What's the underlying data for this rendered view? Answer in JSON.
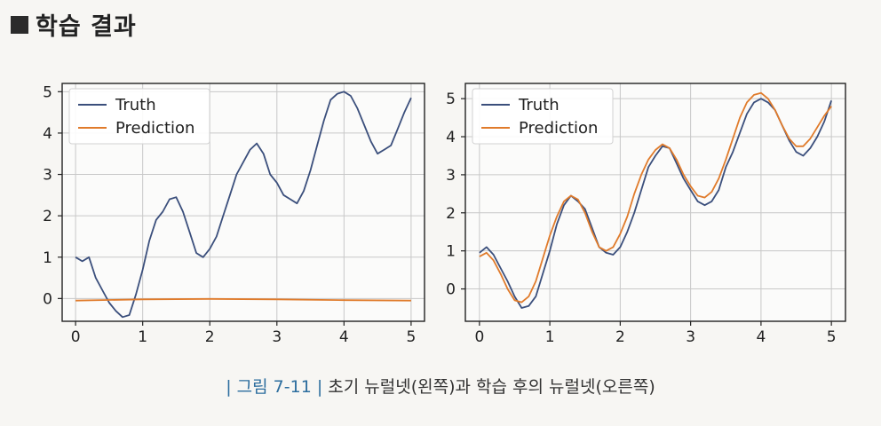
{
  "heading": {
    "title": "학습 결과"
  },
  "caption": {
    "fig_label": "| 그림 7-11 |",
    "text": "초기 뉴럴넷(왼쪽)과 학습 후의 뉴럴넷(오른쪽)"
  },
  "colors": {
    "truth": "#3b4f7c",
    "prediction": "#e07b2b",
    "grid": "#c8c8c8"
  },
  "chart_data": [
    {
      "type": "line",
      "title": "",
      "xlabel": "",
      "ylabel": "",
      "xlim": [
        -0.2,
        5.2
      ],
      "ylim": [
        -0.55,
        5.2
      ],
      "xticks": [
        0,
        1,
        2,
        3,
        4,
        5
      ],
      "yticks": [
        0,
        1,
        2,
        3,
        4,
        5
      ],
      "grid": true,
      "legend": "top-left",
      "series": [
        {
          "name": "Truth",
          "x": [
            0,
            0.1,
            0.2,
            0.3,
            0.4,
            0.5,
            0.6,
            0.7,
            0.8,
            0.9,
            1.0,
            1.1,
            1.2,
            1.3,
            1.4,
            1.5,
            1.6,
            1.7,
            1.8,
            1.9,
            2.0,
            2.1,
            2.2,
            2.3,
            2.4,
            2.5,
            2.6,
            2.7,
            2.8,
            2.9,
            3.0,
            3.1,
            3.2,
            3.3,
            3.4,
            3.5,
            3.6,
            3.7,
            3.8,
            3.9,
            4.0,
            4.1,
            4.2,
            4.3,
            4.4,
            4.5,
            4.6,
            4.7,
            4.8,
            4.9,
            5.0
          ],
          "y": [
            1.0,
            0.9,
            1.0,
            0.5,
            0.2,
            -0.1,
            -0.3,
            -0.45,
            -0.4,
            0.1,
            0.7,
            1.4,
            1.9,
            2.1,
            2.4,
            2.45,
            2.1,
            1.6,
            1.1,
            1.0,
            1.2,
            1.5,
            2.0,
            2.5,
            3.0,
            3.3,
            3.6,
            3.75,
            3.5,
            3.0,
            2.8,
            2.5,
            2.4,
            2.3,
            2.6,
            3.1,
            3.7,
            4.3,
            4.8,
            4.95,
            5.0,
            4.9,
            4.6,
            4.2,
            3.8,
            3.5,
            3.6,
            3.7,
            4.1,
            4.5,
            4.85
          ]
        },
        {
          "name": "Prediction",
          "x": [
            0,
            1,
            2,
            3,
            4,
            5
          ],
          "y": [
            -0.05,
            -0.02,
            -0.01,
            -0.02,
            -0.04,
            -0.05
          ]
        }
      ]
    },
    {
      "type": "line",
      "title": "",
      "xlabel": "",
      "ylabel": "",
      "xlim": [
        -0.2,
        5.2
      ],
      "ylim": [
        -0.85,
        5.4
      ],
      "xticks": [
        0,
        1,
        2,
        3,
        4,
        5
      ],
      "yticks": [
        0,
        1,
        2,
        3,
        4,
        5
      ],
      "grid": true,
      "legend": "top-left",
      "series": [
        {
          "name": "Truth",
          "x": [
            0,
            0.1,
            0.2,
            0.3,
            0.4,
            0.5,
            0.6,
            0.7,
            0.8,
            0.9,
            1.0,
            1.1,
            1.2,
            1.3,
            1.4,
            1.5,
            1.6,
            1.7,
            1.8,
            1.9,
            2.0,
            2.1,
            2.2,
            2.3,
            2.4,
            2.5,
            2.6,
            2.7,
            2.8,
            2.9,
            3.0,
            3.1,
            3.2,
            3.3,
            3.4,
            3.5,
            3.6,
            3.7,
            3.8,
            3.9,
            4.0,
            4.1,
            4.2,
            4.3,
            4.4,
            4.5,
            4.6,
            4.7,
            4.8,
            4.9,
            5.0
          ],
          "y": [
            0.95,
            1.1,
            0.9,
            0.55,
            0.2,
            -0.2,
            -0.5,
            -0.45,
            -0.2,
            0.4,
            1.0,
            1.7,
            2.2,
            2.45,
            2.3,
            2.1,
            1.6,
            1.1,
            0.95,
            0.9,
            1.1,
            1.5,
            2.0,
            2.6,
            3.2,
            3.5,
            3.75,
            3.7,
            3.3,
            2.9,
            2.6,
            2.3,
            2.2,
            2.3,
            2.6,
            3.2,
            3.6,
            4.1,
            4.6,
            4.9,
            5.0,
            4.9,
            4.7,
            4.3,
            3.9,
            3.6,
            3.5,
            3.7,
            4.0,
            4.4,
            4.95
          ]
        },
        {
          "name": "Prediction",
          "x": [
            0,
            0.1,
            0.2,
            0.3,
            0.4,
            0.5,
            0.6,
            0.7,
            0.8,
            0.9,
            1.0,
            1.1,
            1.2,
            1.3,
            1.4,
            1.5,
            1.6,
            1.7,
            1.8,
            1.9,
            2.0,
            2.1,
            2.2,
            2.3,
            2.4,
            2.5,
            2.6,
            2.7,
            2.8,
            2.9,
            3.0,
            3.1,
            3.2,
            3.3,
            3.4,
            3.5,
            3.6,
            3.7,
            3.8,
            3.9,
            4.0,
            4.1,
            4.2,
            4.3,
            4.4,
            4.5,
            4.6,
            4.7,
            4.8,
            4.9,
            5.0
          ],
          "y": [
            0.85,
            0.95,
            0.75,
            0.4,
            0.0,
            -0.3,
            -0.35,
            -0.2,
            0.2,
            0.8,
            1.4,
            1.9,
            2.3,
            2.45,
            2.35,
            2.0,
            1.5,
            1.1,
            1.0,
            1.1,
            1.45,
            1.9,
            2.5,
            3.0,
            3.4,
            3.65,
            3.8,
            3.7,
            3.4,
            3.0,
            2.7,
            2.45,
            2.4,
            2.55,
            2.9,
            3.4,
            3.95,
            4.5,
            4.9,
            5.1,
            5.15,
            5.0,
            4.7,
            4.3,
            3.95,
            3.75,
            3.75,
            3.95,
            4.25,
            4.55,
            4.8
          ]
        }
      ]
    }
  ]
}
